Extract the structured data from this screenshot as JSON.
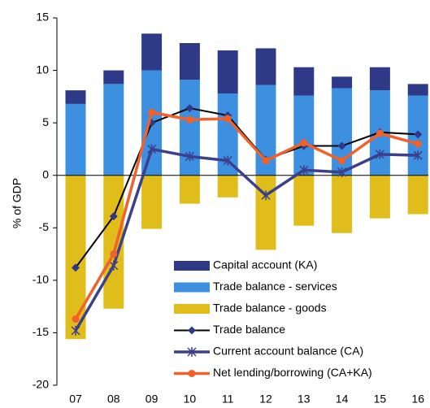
{
  "chart_data": {
    "type": "combo",
    "y_label": "% of GDP",
    "categories": [
      "07",
      "08",
      "09",
      "10",
      "11",
      "12",
      "13",
      "14",
      "15",
      "16"
    ],
    "ylim": [
      -20,
      15
    ],
    "yticks": [
      -20,
      -15,
      -10,
      -5,
      0,
      5,
      10,
      15
    ],
    "series": [
      {
        "name": "Capital account (KA)",
        "type": "bar",
        "color": "#2e3a87",
        "values": [
          1.3,
          1.3,
          3.5,
          3.5,
          4.1,
          3.5,
          2.7,
          1.1,
          2.2,
          1.1
        ]
      },
      {
        "name": "Trade balance - services",
        "type": "bar",
        "color": "#3d8fe0",
        "values": [
          6.8,
          8.7,
          10.0,
          9.1,
          7.8,
          8.6,
          7.6,
          8.3,
          8.1,
          7.6
        ]
      },
      {
        "name": "Trade balance - goods",
        "type": "bar",
        "color": "#e0bd1a",
        "values": [
          -15.6,
          -12.7,
          -5.1,
          -2.7,
          -2.1,
          -7.1,
          -4.8,
          -5.5,
          -4.1,
          -3.7
        ]
      },
      {
        "name": "Trade balance",
        "type": "line",
        "color": "#000000",
        "marker": "diamond",
        "marker_color": "#2e3a87",
        "values": [
          -8.8,
          -3.9,
          5.0,
          6.4,
          5.7,
          1.5,
          2.8,
          2.8,
          4.1,
          3.9
        ]
      },
      {
        "name": "Current account balance (CA)",
        "type": "line",
        "color": "#3b3f8c",
        "marker": "star",
        "marker_color": "#3b3f8c",
        "values": [
          -14.8,
          -8.6,
          2.5,
          1.8,
          1.4,
          -1.9,
          0.5,
          0.3,
          2.0,
          1.9
        ]
      },
      {
        "name": "Net lending/borrowing (CA+KA)",
        "type": "line",
        "color": "#f0622a",
        "marker": "circle",
        "marker_color": "#f0622a",
        "values": [
          -13.7,
          -7.5,
          6.0,
          5.3,
          5.4,
          1.4,
          3.1,
          1.4,
          4.0,
          3.0
        ]
      }
    ]
  }
}
